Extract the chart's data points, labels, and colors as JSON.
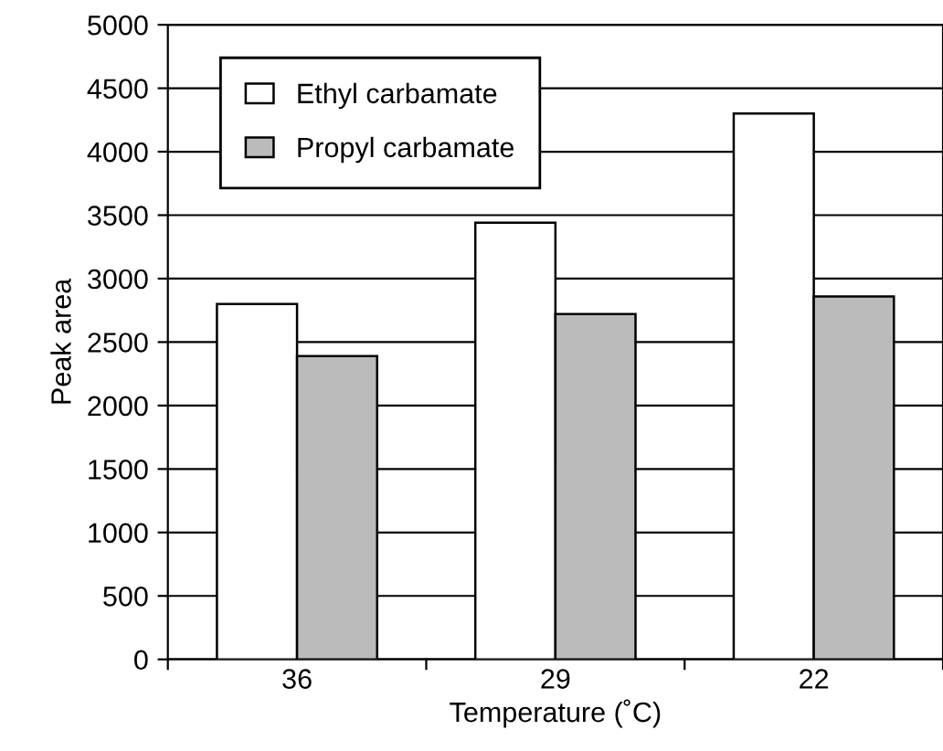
{
  "chart_data": {
    "type": "bar",
    "xlabel": "Temperature (˚C)",
    "ylabel": "Peak area",
    "categories": [
      "36",
      "29",
      "22"
    ],
    "series": [
      {
        "name": "Ethyl carbamate",
        "color": "#ffffff",
        "values": [
          2800,
          3440,
          4300
        ]
      },
      {
        "name": "Propyl carbamate",
        "color": "#bbbbbb",
        "values": [
          2390,
          2720,
          2860
        ]
      }
    ],
    "ylim": [
      0,
      5000
    ],
    "yticks": [
      0,
      500,
      1000,
      1500,
      2000,
      2500,
      3000,
      3500,
      4000,
      4500,
      5000
    ],
    "grid": "y",
    "legend": "top left"
  }
}
